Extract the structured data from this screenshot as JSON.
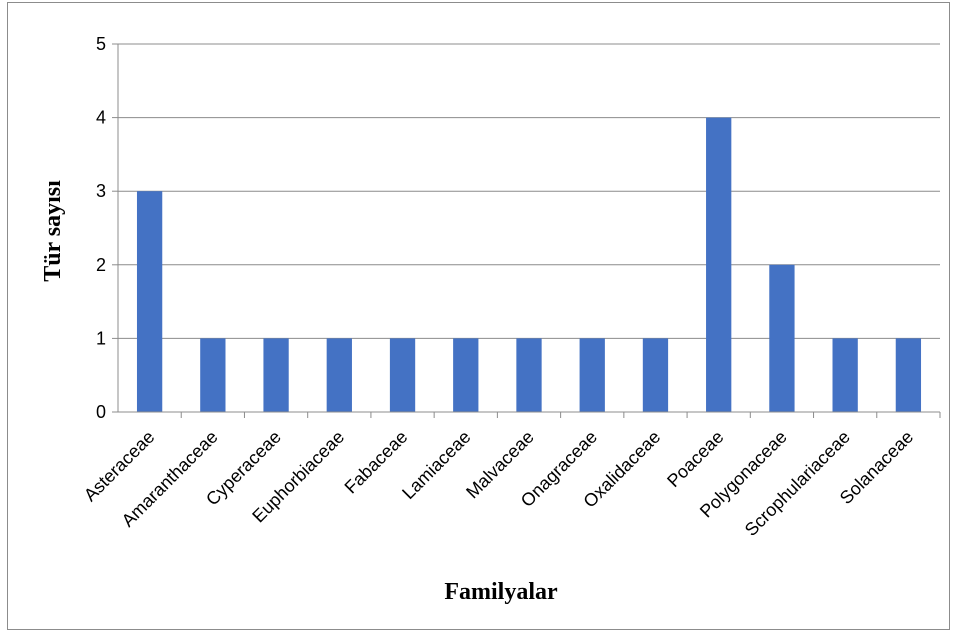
{
  "chart_data": {
    "type": "bar",
    "categories": [
      "Asteraceae",
      "Amaranthaceae",
      "Cyperaceae",
      "Euphorbiaceae",
      "Fabaceae",
      "Lamiaceae",
      "Malvaceae",
      "Onagraceae",
      "Oxalidaceae",
      "Poaceae",
      "Polygonaceae",
      "Scrophulariaceae",
      "Solanaceae"
    ],
    "values": [
      3,
      1,
      1,
      1,
      1,
      1,
      1,
      1,
      1,
      4,
      2,
      1,
      1
    ],
    "yticks": [
      "0",
      "1",
      "2",
      "3",
      "4",
      "5"
    ],
    "ylim": [
      0,
      5
    ],
    "xlabel": "Familyalar",
    "ylabel": "Tür sayısı",
    "grid": true,
    "legend": "none",
    "bar_color": "#4472c4",
    "grid_color": "#8c8c8c"
  }
}
